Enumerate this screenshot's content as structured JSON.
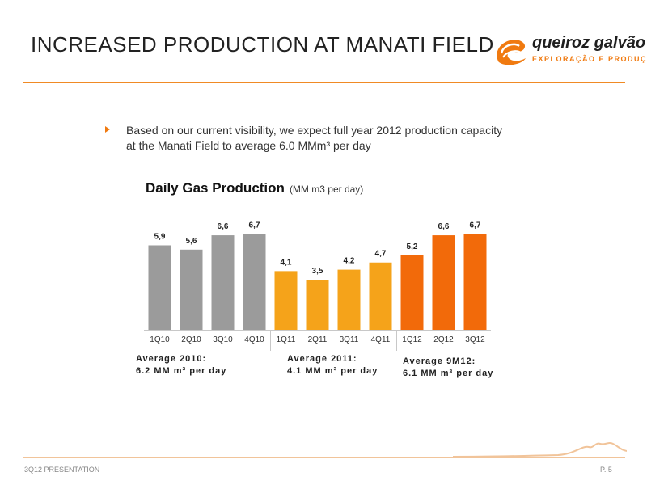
{
  "header": {
    "title": "INCREASED PRODUCTION AT MANATI FIELD",
    "logo_brand": "queiroz galvão",
    "logo_sub": "EXPLORAÇÃO E PRODUÇÃO",
    "accent_color": "#f08a24"
  },
  "bullet": {
    "text": "Based on our current visibility, we expect full year 2012 production capacity at the Manati Field to average 6.0 MMm³ per day"
  },
  "chart_data": {
    "type": "bar",
    "title": "Daily Gas Production",
    "unit": "(MM m3 per day)",
    "categories": [
      "1Q10",
      "2Q10",
      "3Q10",
      "4Q10",
      "1Q11",
      "2Q11",
      "3Q11",
      "4Q11",
      "1Q12",
      "2Q12",
      "3Q12"
    ],
    "values": [
      5.9,
      5.6,
      6.6,
      6.7,
      4.1,
      3.5,
      4.2,
      4.7,
      5.2,
      6.6,
      6.7
    ],
    "value_labels": [
      "5,9",
      "5,6",
      "6,6",
      "6,7",
      "4,1",
      "3,5",
      "4,2",
      "4,7",
      "5,2",
      "6,6",
      "6,7"
    ],
    "colors": [
      "#9b9b9b",
      "#9b9b9b",
      "#9b9b9b",
      "#9b9b9b",
      "#f5a31a",
      "#f5a31a",
      "#f5a31a",
      "#f5a31a",
      "#f26a0a",
      "#f26a0a",
      "#f26a0a"
    ],
    "ylim": [
      0,
      8
    ],
    "grid": false
  },
  "averages": [
    {
      "line1": "Average 2010:",
      "line2": "6.2 MM m³ per day"
    },
    {
      "line1": "Average 2011:",
      "line2": "4.1 MM m³ per day"
    },
    {
      "line1": "Average 9M12:",
      "line2": "6.1 MM m³ per day"
    }
  ],
  "footer": {
    "left": "3Q12 PRESENTATION",
    "right": "P. 5"
  }
}
